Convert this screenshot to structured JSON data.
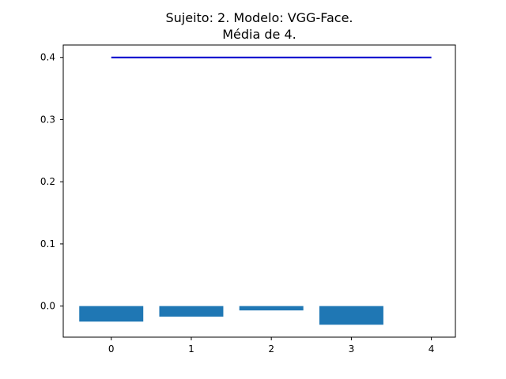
{
  "chart_data": {
    "type": "bar",
    "title": "Sujeito: 2. Modelo: VGG-Face.",
    "subtitle": "Média de 4.",
    "xlabel": "",
    "ylabel": "",
    "categories": [
      0,
      1,
      2,
      3
    ],
    "values": [
      -0.025,
      -0.017,
      -0.007,
      -0.03
    ],
    "bar_color": "#1f77b4",
    "reference_line": {
      "x_start": 0,
      "x_end": 4,
      "y": 0.4,
      "color": "#0000cc"
    },
    "xlim": [
      -0.6,
      4.3
    ],
    "ylim": [
      -0.05,
      0.42
    ],
    "xticks": [
      0,
      1,
      2,
      3,
      4
    ],
    "yticks": [
      0.0,
      0.1,
      0.2,
      0.3,
      0.4
    ],
    "ytick_labels": [
      "0.0",
      "0.1",
      "0.2",
      "0.3",
      "0.4"
    ],
    "grid": false,
    "legend": "none"
  }
}
